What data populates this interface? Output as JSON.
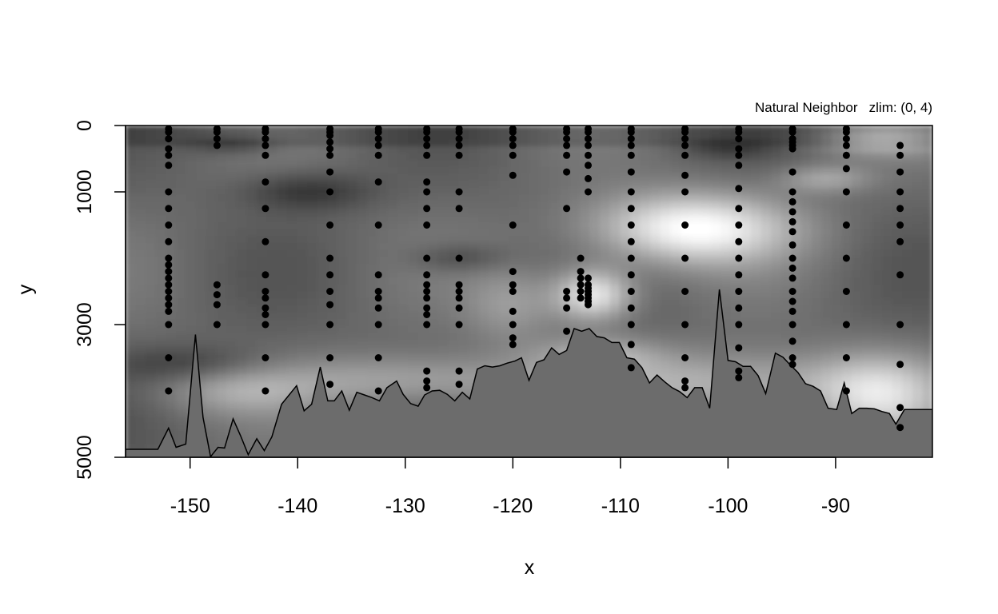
{
  "chart_data": {
    "type": "heatmap",
    "title": "Natural Neighbor   zlim: (0, 4)",
    "xlabel": "x",
    "ylabel": "y",
    "xlim": [
      -156,
      -81
    ],
    "ylim": [
      5000,
      0
    ],
    "y_reversed": true,
    "zlim": [
      0,
      4
    ],
    "color_scale": "grayscale",
    "x_ticks": [
      -150,
      -140,
      -130,
      -120,
      -110,
      -100,
      -90
    ],
    "x_tick_labels": [
      "-150",
      "-140",
      "-130",
      "-120",
      "-110",
      "-100",
      "-90"
    ],
    "y_ticks": [
      0,
      1000,
      3000,
      5000
    ],
    "y_tick_labels": [
      "0",
      "1000",
      "3000",
      "5000"
    ],
    "field_features": [
      {
        "x": -103.5,
        "y": 1550,
        "z": 4.0,
        "sx": 6.5,
        "sy": 380
      },
      {
        "x": -112.5,
        "y": 2550,
        "z": 3.8,
        "sx": 2.6,
        "sy": 280
      },
      {
        "x": -100,
        "y": 3900,
        "z": 2.7,
        "sx": 12,
        "sy": 350
      },
      {
        "x": -130,
        "y": 3850,
        "z": 2.4,
        "sx": 9,
        "sy": 280
      },
      {
        "x": -146,
        "y": 4000,
        "z": 2.2,
        "sx": 5,
        "sy": 260
      },
      {
        "x": -86,
        "y": 4100,
        "z": 2.8,
        "sx": 4,
        "sy": 450
      },
      {
        "x": -86,
        "y": 200,
        "z": 2.6,
        "sx": 4,
        "sy": 180
      },
      {
        "x": -91,
        "y": 800,
        "z": 2.4,
        "sx": 3,
        "sy": 150
      },
      {
        "x": -112,
        "y": 3450,
        "z": 2.3,
        "sx": 4,
        "sy": 200
      },
      {
        "x": -120,
        "y": 2700,
        "z": 2.2,
        "sx": 3,
        "sy": 400
      },
      {
        "x": -139,
        "y": 1000,
        "z": 0.4,
        "sx": 4,
        "sy": 200
      },
      {
        "x": -125,
        "y": 2000,
        "z": 0.6,
        "sx": 3,
        "sy": 150
      },
      {
        "x": -150,
        "y": 3600,
        "z": 0.6,
        "sx": 5,
        "sy": 200
      },
      {
        "x": -146,
        "y": 300,
        "z": 0.6,
        "sx": 3,
        "sy": 100
      },
      {
        "x": -100,
        "y": 350,
        "z": 0.7,
        "sx": 3,
        "sy": 100
      }
    ],
    "stations": [
      {
        "x": -152,
        "depths": [
          50,
          100,
          200,
          350,
          450,
          600,
          1000,
          1250,
          1500,
          1750,
          2000,
          2100,
          2200,
          2300,
          2400,
          2500,
          2600,
          2700,
          2800,
          3000,
          3500,
          4000
        ]
      },
      {
        "x": -147.5,
        "depths": [
          50,
          100,
          200,
          300
        ]
      },
      {
        "x": -147.5,
        "depths": [
          2400,
          2550,
          2700,
          3000
        ]
      },
      {
        "x": -143,
        "depths": [
          50,
          100,
          200,
          300,
          450,
          850,
          1250,
          1750,
          2250,
          2500,
          2600,
          2750,
          2850,
          3000,
          3500,
          4000
        ]
      },
      {
        "x": -137,
        "depths": [
          50,
          100,
          150,
          250,
          350,
          450,
          700,
          1000,
          1500,
          2000,
          2250,
          2500,
          2700,
          3000,
          3500,
          3900
        ]
      },
      {
        "x": -132.5,
        "depths": [
          50,
          100,
          200,
          300,
          450,
          850,
          1500,
          2250,
          2500,
          2600,
          2750,
          3000,
          3500,
          4000
        ]
      },
      {
        "x": -128,
        "depths": [
          50,
          100,
          200,
          300,
          450,
          850,
          1000,
          1250,
          1500,
          2000,
          2250,
          2400,
          2500,
          2600,
          2750,
          2850,
          3000,
          3700,
          3850,
          3950
        ]
      },
      {
        "x": -125,
        "depths": [
          50,
          100,
          200,
          300,
          450,
          1000,
          1250,
          2000,
          2400,
          2500,
          2600,
          2750,
          3000,
          3700,
          3900
        ]
      },
      {
        "x": -120,
        "depths": [
          50,
          100,
          200,
          300,
          450,
          750,
          1500,
          2200,
          2400,
          2500,
          2800,
          3000,
          3200,
          3300
        ]
      },
      {
        "x": -115,
        "depths": [
          50,
          100,
          200,
          300,
          450,
          700,
          1250,
          2500,
          2600,
          2750,
          3100
        ]
      },
      {
        "x": -113.7,
        "depths": [
          2000,
          2200,
          2300,
          2400,
          2500,
          2600
        ]
      },
      {
        "x": -113,
        "depths": [
          50,
          100,
          200,
          300,
          450,
          600,
          800,
          1000,
          2300,
          2400,
          2450,
          2500,
          2550,
          2600,
          2650,
          2700
        ]
      },
      {
        "x": -109,
        "depths": [
          50,
          100,
          200,
          300,
          450,
          700,
          1000,
          1250,
          1500,
          1750,
          2000,
          2250,
          2500,
          2750,
          3000,
          3300,
          3650
        ]
      },
      {
        "x": -104,
        "depths": [
          50,
          100,
          200,
          300,
          450,
          750,
          1000,
          1500,
          2000,
          2500,
          3000,
          3500,
          3850,
          3950
        ]
      },
      {
        "x": -99,
        "depths": [
          50,
          100,
          200,
          350,
          450,
          600,
          950,
          1250,
          1500,
          1750,
          2000,
          2250,
          2500,
          2750,
          3000,
          3350,
          3700,
          3800
        ]
      },
      {
        "x": -94,
        "depths": [
          50,
          100,
          200,
          250,
          300,
          350,
          700,
          1000,
          1150,
          1300,
          1450,
          1600,
          1800,
          2000,
          2150,
          2300,
          2500,
          2650,
          2800,
          3000,
          3250,
          3500,
          3600
        ]
      },
      {
        "x": -89,
        "depths": [
          50,
          100,
          200,
          300,
          450,
          650,
          1000,
          1500,
          2000,
          2500,
          3000,
          3500,
          4000
        ]
      },
      {
        "x": -84,
        "depths": [
          300,
          450,
          700,
          1000,
          1250,
          1500,
          1750,
          2250,
          3000,
          3600,
          4250,
          4550
        ]
      }
    ],
    "bathymetry": [
      [
        -156,
        4880
      ],
      [
        -153,
        4880
      ],
      [
        -152,
        4560
      ],
      [
        -151.3,
        4850
      ],
      [
        -150.4,
        4800
      ],
      [
        -149.5,
        3150
      ],
      [
        -148.8,
        4400
      ],
      [
        -148.1,
        4990
      ],
      [
        -147.4,
        4850
      ],
      [
        -146.8,
        4860
      ],
      [
        -146,
        4420
      ],
      [
        -145.3,
        4680
      ],
      [
        -144.6,
        4960
      ],
      [
        -143.8,
        4720
      ],
      [
        -143.1,
        4900
      ],
      [
        -142.4,
        4690
      ],
      [
        -141.5,
        4200
      ],
      [
        -140.1,
        3920
      ],
      [
        -139.4,
        4300
      ],
      [
        -138.7,
        4200
      ],
      [
        -137.9,
        3640
      ],
      [
        -137.2,
        4150
      ],
      [
        -136.6,
        4150
      ],
      [
        -135.9,
        4000
      ],
      [
        -135.2,
        4290
      ],
      [
        -134.5,
        4020
      ],
      [
        -133.8,
        4060
      ],
      [
        -133.1,
        4100
      ],
      [
        -132.4,
        4150
      ],
      [
        -131.7,
        3950
      ],
      [
        -130.8,
        3850
      ],
      [
        -130.2,
        4050
      ],
      [
        -129.5,
        4190
      ],
      [
        -128.8,
        4230
      ],
      [
        -128.2,
        4060
      ],
      [
        -127.5,
        4000
      ],
      [
        -126.8,
        3990
      ],
      [
        -126.1,
        4050
      ],
      [
        -125.4,
        4150
      ],
      [
        -124.7,
        4020
      ],
      [
        -124,
        4120
      ],
      [
        -123.3,
        3670
      ],
      [
        -122.6,
        3620
      ],
      [
        -121.9,
        3640
      ],
      [
        -121.2,
        3620
      ],
      [
        -120.5,
        3580
      ],
      [
        -119.8,
        3550
      ],
      [
        -119.2,
        3500
      ],
      [
        -118.5,
        3840
      ],
      [
        -117.8,
        3570
      ],
      [
        -117.1,
        3530
      ],
      [
        -116.4,
        3350
      ],
      [
        -115.7,
        3450
      ],
      [
        -115,
        3390
      ],
      [
        -114.3,
        3060
      ],
      [
        -113.6,
        3100
      ],
      [
        -112.9,
        3060
      ],
      [
        -112.2,
        3180
      ],
      [
        -111.5,
        3200
      ],
      [
        -110.8,
        3270
      ],
      [
        -110.1,
        3270
      ],
      [
        -109.4,
        3500
      ],
      [
        -108.7,
        3520
      ],
      [
        -108,
        3650
      ],
      [
        -107.3,
        3880
      ],
      [
        -106.6,
        3760
      ],
      [
        -105.9,
        3860
      ],
      [
        -105.2,
        3950
      ],
      [
        -104.5,
        4010
      ],
      [
        -103.8,
        4100
      ],
      [
        -103.1,
        3950
      ],
      [
        -102.4,
        3950
      ],
      [
        -101.7,
        4260
      ],
      [
        -100.8,
        2470
      ],
      [
        -100,
        3540
      ],
      [
        -99.3,
        3560
      ],
      [
        -98.6,
        3630
      ],
      [
        -97.9,
        3630
      ],
      [
        -97.2,
        3770
      ],
      [
        -96.5,
        4040
      ],
      [
        -95.6,
        3430
      ],
      [
        -94.9,
        3490
      ],
      [
        -94.2,
        3610
      ],
      [
        -93.5,
        3720
      ],
      [
        -92.8,
        3890
      ],
      [
        -92.1,
        3930
      ],
      [
        -91.4,
        4000
      ],
      [
        -90.7,
        4260
      ],
      [
        -89.9,
        4280
      ],
      [
        -89.2,
        3880
      ],
      [
        -88.5,
        4340
      ],
      [
        -87.8,
        4260
      ],
      [
        -87.1,
        4260
      ],
      [
        -86.4,
        4270
      ],
      [
        -85.7,
        4310
      ],
      [
        -85,
        4340
      ],
      [
        -84.4,
        4500
      ],
      [
        -83.6,
        4280
      ],
      [
        -81,
        4280
      ]
    ]
  }
}
